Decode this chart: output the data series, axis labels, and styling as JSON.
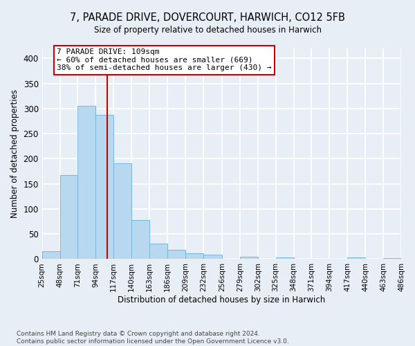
{
  "title": "7, PARADE DRIVE, DOVERCOURT, HARWICH, CO12 5FB",
  "subtitle": "Size of property relative to detached houses in Harwich",
  "xlabel": "Distribution of detached houses by size in Harwich",
  "ylabel": "Number of detached properties",
  "bar_color": "#b8d8f0",
  "bar_edge_color": "#7ab5d8",
  "fig_background_color": "#e8eef5",
  "plot_background_color": "#e8eef5",
  "grid_color": "#ffffff",
  "annotation_box_color": "#cc0000",
  "annotation_text_line1": "7 PARADE DRIVE: 109sqm",
  "annotation_text_line2": "← 60% of detached houses are smaller (669)",
  "annotation_text_line3": "38% of semi-detached houses are larger (430) →",
  "redline_x": 109,
  "footnote_line1": "Contains HM Land Registry data © Crown copyright and database right 2024.",
  "footnote_line2": "Contains public sector information licensed under the Open Government Licence v3.0.",
  "bin_edges": [
    25,
    48,
    71,
    94,
    117,
    140,
    163,
    186,
    209,
    232,
    256,
    279,
    302,
    325,
    348,
    371,
    394,
    417,
    440,
    463,
    486
  ],
  "bin_counts": [
    16,
    168,
    305,
    287,
    191,
    78,
    31,
    19,
    11,
    9,
    0,
    5,
    0,
    3,
    0,
    0,
    0,
    3,
    0,
    2
  ],
  "ylim": [
    0,
    420
  ],
  "yticks": [
    0,
    50,
    100,
    150,
    200,
    250,
    300,
    350,
    400
  ]
}
